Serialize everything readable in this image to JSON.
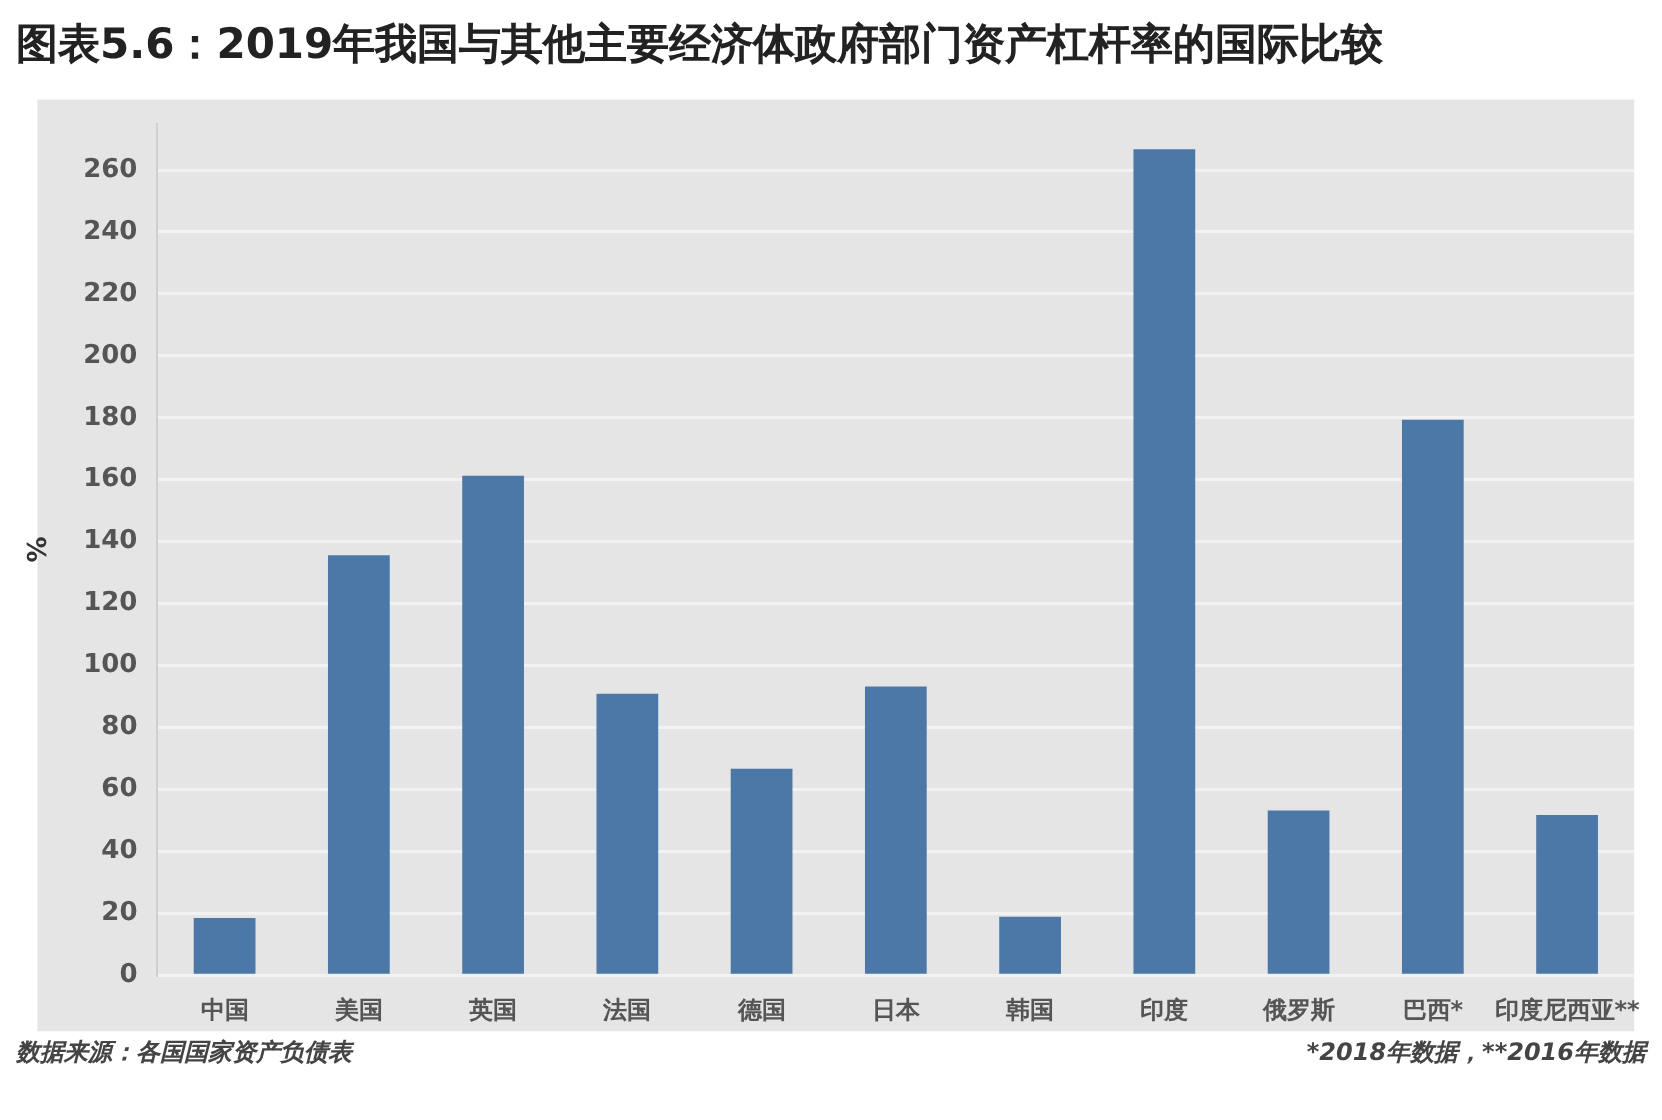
{
  "chart_data": {
    "type": "bar",
    "title": "图表5.6：2019年我国与其他主要经济体政府部门资产杠杆率的国际比较",
    "ylabel": "%",
    "categories": [
      "中国",
      "美国",
      "英国",
      "法国",
      "德国",
      "日本",
      "韩国",
      "印度",
      "俄罗斯",
      "巴西*",
      "印度尼西亚**"
    ],
    "values": [
      18.5,
      135.6,
      161.3,
      90.9,
      66.7,
      93.2,
      18.9,
      266.7,
      53.2,
      179.4,
      51.7
    ],
    "color": "#4c78a8",
    "ylim": [
      0,
      275
    ],
    "yticks": [
      0,
      20,
      40,
      60,
      80,
      100,
      120,
      140,
      160,
      180,
      200,
      220,
      240,
      260
    ],
    "grid": "y",
    "legend": false,
    "annotations": [
      "数据来源：各国国家资产负债表",
      "*2018年数据，**2016年数据"
    ]
  }
}
